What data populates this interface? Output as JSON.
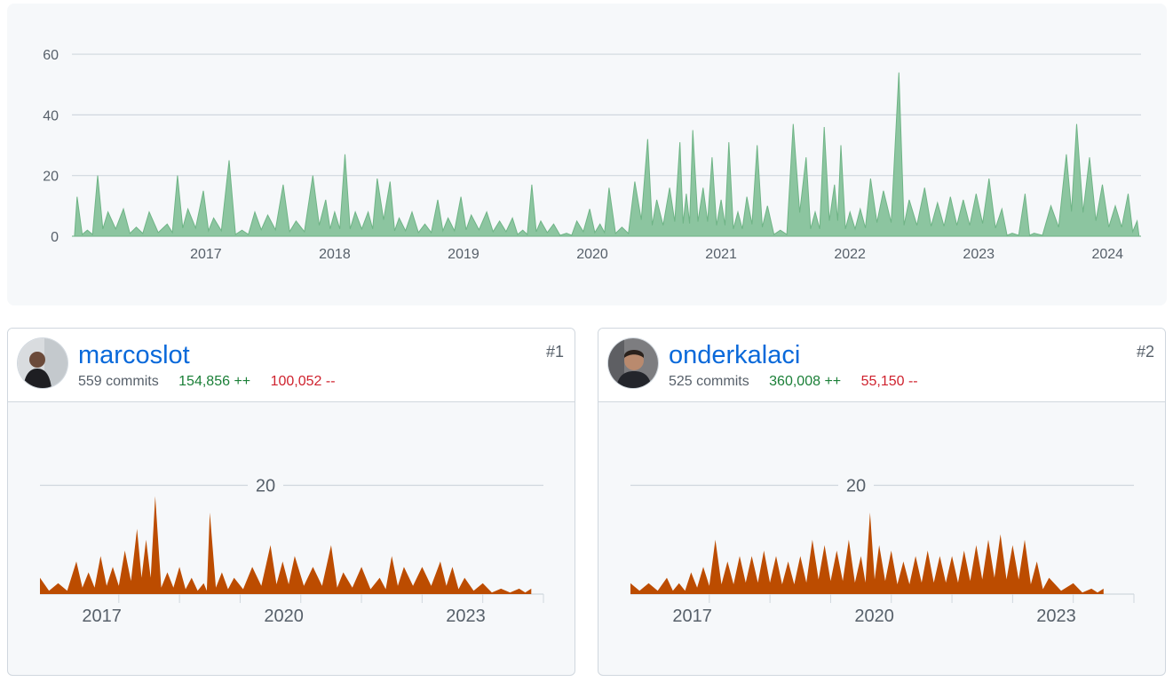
{
  "main_chart": {
    "yticks": [
      "60",
      "40",
      "20",
      "0"
    ],
    "xticks": [
      "2017",
      "2018",
      "2019",
      "2020",
      "2021",
      "2022",
      "2023",
      "2024"
    ],
    "colors": {
      "fill": "#8cc5a0",
      "stroke": "#6fb486",
      "grid": "#d0d7de",
      "label": "#57606a"
    }
  },
  "contributors": [
    {
      "login": "marcoslot",
      "commits": "559 commits",
      "additions": "154,856 ++",
      "deletions": "100,052 --",
      "rank": "#1",
      "ytick": "20",
      "xticks": [
        "2017",
        "2020",
        "2023"
      ]
    },
    {
      "login": "onderkalaci",
      "commits": "525 commits",
      "additions": "360,008 ++",
      "deletions": "55,150 --",
      "rank": "#2",
      "ytick": "20",
      "xticks": [
        "2017",
        "2020",
        "2023"
      ]
    }
  ],
  "colors": {
    "contributor_fill": "#bc4c00",
    "link": "#0969da",
    "additions": "#1a7f37",
    "deletions": "#cf222e"
  },
  "chart_data": [
    {
      "type": "area",
      "x_unit": "year",
      "x_range": [
        2016.08,
        2024.38
      ],
      "ylim": [
        0,
        65
      ],
      "peaks": [
        [
          2016.08,
          0
        ],
        [
          2016.12,
          13
        ],
        [
          2016.2,
          2
        ],
        [
          2016.28,
          20
        ],
        [
          2016.36,
          8
        ],
        [
          2016.48,
          9
        ],
        [
          2016.58,
          3
        ],
        [
          2016.68,
          8
        ],
        [
          2016.82,
          4
        ],
        [
          2016.9,
          20
        ],
        [
          2016.98,
          9
        ],
        [
          2017.1,
          15
        ],
        [
          2017.18,
          6
        ],
        [
          2017.3,
          25
        ],
        [
          2017.4,
          2
        ],
        [
          2017.5,
          8
        ],
        [
          2017.6,
          7
        ],
        [
          2017.72,
          17
        ],
        [
          2017.82,
          5
        ],
        [
          2017.95,
          20
        ],
        [
          2018.05,
          12
        ],
        [
          2018.12,
          8
        ],
        [
          2018.2,
          27
        ],
        [
          2018.28,
          8
        ],
        [
          2018.38,
          8
        ],
        [
          2018.45,
          19
        ],
        [
          2018.55,
          18
        ],
        [
          2018.62,
          6
        ],
        [
          2018.72,
          8
        ],
        [
          2018.82,
          4
        ],
        [
          2018.92,
          12
        ],
        [
          2019.0,
          6
        ],
        [
          2019.1,
          13
        ],
        [
          2019.18,
          7
        ],
        [
          2019.3,
          8
        ],
        [
          2019.4,
          5
        ],
        [
          2019.5,
          6
        ],
        [
          2019.58,
          2
        ],
        [
          2019.65,
          17
        ],
        [
          2019.72,
          5
        ],
        [
          2019.82,
          4
        ],
        [
          2019.92,
          1
        ],
        [
          2020.0,
          5
        ],
        [
          2020.1,
          9
        ],
        [
          2020.18,
          4
        ],
        [
          2020.25,
          16
        ],
        [
          2020.35,
          3
        ],
        [
          2020.45,
          18
        ],
        [
          2020.55,
          32
        ],
        [
          2020.62,
          12
        ],
        [
          2020.72,
          16
        ],
        [
          2020.8,
          31
        ],
        [
          2020.85,
          14
        ],
        [
          2020.9,
          35
        ],
        [
          2020.98,
          16
        ],
        [
          2021.05,
          26
        ],
        [
          2021.12,
          12
        ],
        [
          2021.18,
          31
        ],
        [
          2021.25,
          8
        ],
        [
          2021.32,
          13
        ],
        [
          2021.4,
          30
        ],
        [
          2021.48,
          10
        ],
        [
          2021.58,
          2
        ],
        [
          2021.68,
          37
        ],
        [
          2021.78,
          26
        ],
        [
          2021.85,
          8
        ],
        [
          2021.92,
          36
        ],
        [
          2022.0,
          17
        ],
        [
          2022.05,
          30
        ],
        [
          2022.12,
          8
        ],
        [
          2022.2,
          9
        ],
        [
          2022.28,
          19
        ],
        [
          2022.38,
          15
        ],
        [
          2022.5,
          54
        ],
        [
          2022.58,
          12
        ],
        [
          2022.7,
          16
        ],
        [
          2022.8,
          11
        ],
        [
          2022.9,
          13
        ],
        [
          2023.0,
          12
        ],
        [
          2023.1,
          14
        ],
        [
          2023.2,
          19
        ],
        [
          2023.3,
          9
        ],
        [
          2023.38,
          1
        ],
        [
          2023.48,
          14
        ],
        [
          2023.55,
          1
        ],
        [
          2023.68,
          10
        ],
        [
          2023.8,
          27
        ],
        [
          2023.88,
          37
        ],
        [
          2023.98,
          26
        ],
        [
          2024.08,
          17
        ],
        [
          2024.18,
          10
        ],
        [
          2024.28,
          14
        ],
        [
          2024.35,
          5
        ],
        [
          2024.38,
          0
        ]
      ]
    },
    {
      "type": "area",
      "series": "marcoslot",
      "x_unit": "year",
      "x_range": [
        2016.0,
        2024.3
      ],
      "ylim": [
        0,
        32
      ],
      "peaks": [
        [
          2016.0,
          3
        ],
        [
          2016.3,
          2
        ],
        [
          2016.6,
          6
        ],
        [
          2016.8,
          4
        ],
        [
          2017.0,
          7
        ],
        [
          2017.2,
          5
        ],
        [
          2017.4,
          8
        ],
        [
          2017.6,
          12
        ],
        [
          2017.75,
          10
        ],
        [
          2017.9,
          18
        ],
        [
          2018.1,
          4
        ],
        [
          2018.3,
          5
        ],
        [
          2018.5,
          3
        ],
        [
          2018.7,
          2
        ],
        [
          2018.8,
          15
        ],
        [
          2019.0,
          4
        ],
        [
          2019.2,
          3
        ],
        [
          2019.5,
          5
        ],
        [
          2019.8,
          9
        ],
        [
          2020.0,
          6
        ],
        [
          2020.2,
          7
        ],
        [
          2020.5,
          5
        ],
        [
          2020.8,
          9
        ],
        [
          2021.0,
          4
        ],
        [
          2021.3,
          5
        ],
        [
          2021.6,
          3
        ],
        [
          2021.8,
          7
        ],
        [
          2022.0,
          5
        ],
        [
          2022.3,
          5
        ],
        [
          2022.6,
          6
        ],
        [
          2022.8,
          5
        ],
        [
          2023.0,
          3
        ],
        [
          2023.3,
          2
        ],
        [
          2023.6,
          1
        ],
        [
          2023.9,
          1
        ],
        [
          2024.1,
          1
        ]
      ]
    },
    {
      "type": "area",
      "series": "onderkalaci",
      "x_unit": "year",
      "x_range": [
        2016.0,
        2024.3
      ],
      "ylim": [
        0,
        32
      ],
      "peaks": [
        [
          2016.0,
          2
        ],
        [
          2016.3,
          2
        ],
        [
          2016.6,
          3
        ],
        [
          2016.8,
          2
        ],
        [
          2017.0,
          4
        ],
        [
          2017.2,
          5
        ],
        [
          2017.4,
          10
        ],
        [
          2017.6,
          6
        ],
        [
          2017.8,
          7
        ],
        [
          2018.0,
          7
        ],
        [
          2018.2,
          8
        ],
        [
          2018.4,
          7
        ],
        [
          2018.6,
          6
        ],
        [
          2018.8,
          7
        ],
        [
          2019.0,
          10
        ],
        [
          2019.2,
          9
        ],
        [
          2019.4,
          8
        ],
        [
          2019.6,
          10
        ],
        [
          2019.8,
          7
        ],
        [
          2019.95,
          15
        ],
        [
          2020.1,
          9
        ],
        [
          2020.3,
          8
        ],
        [
          2020.5,
          6
        ],
        [
          2020.7,
          7
        ],
        [
          2020.9,
          8
        ],
        [
          2021.1,
          7
        ],
        [
          2021.3,
          7
        ],
        [
          2021.5,
          8
        ],
        [
          2021.7,
          9
        ],
        [
          2021.9,
          10
        ],
        [
          2022.1,
          11
        ],
        [
          2022.3,
          9
        ],
        [
          2022.5,
          10
        ],
        [
          2022.7,
          6
        ],
        [
          2022.9,
          3
        ],
        [
          2023.3,
          2
        ],
        [
          2023.6,
          1
        ],
        [
          2023.8,
          1
        ]
      ]
    }
  ]
}
